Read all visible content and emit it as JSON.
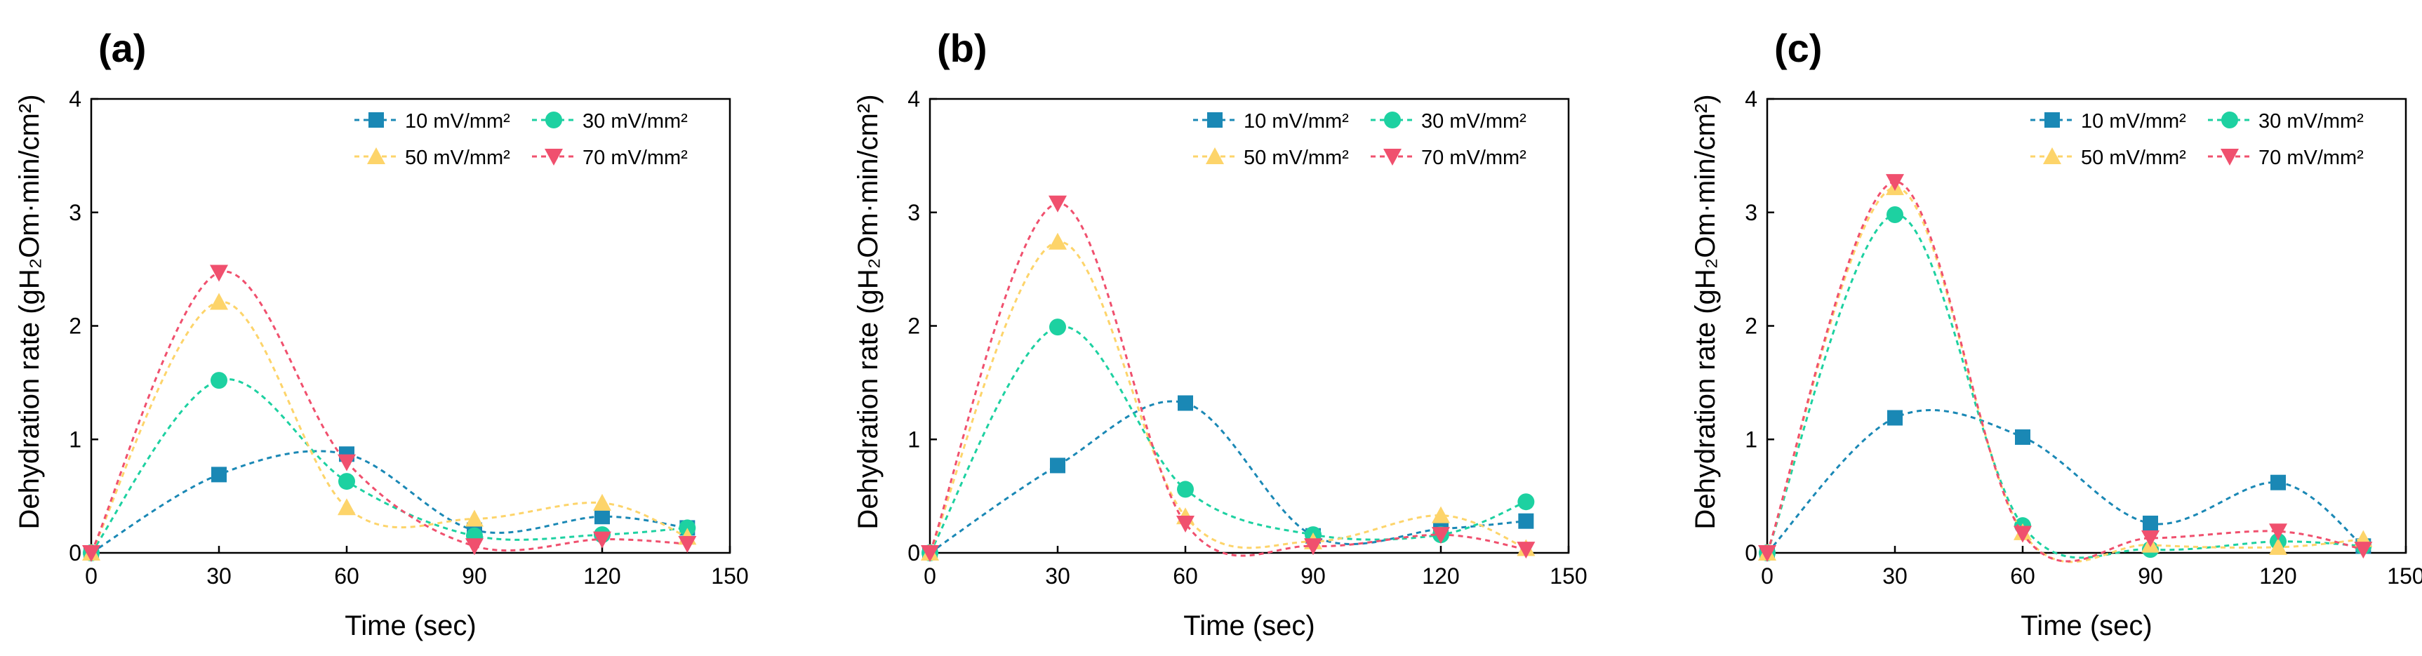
{
  "chart_data": [
    {
      "type": "line",
      "panel_label": "(a)",
      "xlabel": "Time (sec)",
      "ylabel": "Dehydration rate (gH₂Om·min/cm²)",
      "xlim": [
        0,
        150
      ],
      "ylim": [
        0,
        4
      ],
      "xticks": [
        "0",
        "30",
        "60",
        "90",
        "120",
        "150"
      ],
      "yticks": [
        "0",
        "1",
        "2",
        "3",
        "4"
      ],
      "x": [
        0,
        30,
        60,
        90,
        120,
        140
      ],
      "series": [
        {
          "name": "10 mV/mm²",
          "color": "#1a88b5",
          "marker": "square",
          "values": [
            0,
            0.69,
            0.87,
            0.2,
            0.32,
            0.22
          ]
        },
        {
          "name": "30 mV/mm²",
          "color": "#1dd1a1",
          "marker": "circle",
          "values": [
            0,
            1.52,
            0.63,
            0.15,
            0.16,
            0.22
          ]
        },
        {
          "name": "50 mV/mm²",
          "color": "#fdd46a",
          "marker": "triangle-up",
          "values": [
            0,
            2.21,
            0.4,
            0.3,
            0.44,
            0.14
          ]
        },
        {
          "name": "70 mV/mm²",
          "color": "#f0506e",
          "marker": "triangle-down",
          "values": [
            0,
            2.47,
            0.8,
            0.06,
            0.12,
            0.08
          ]
        }
      ]
    },
    {
      "type": "line",
      "panel_label": "(b)",
      "xlabel": "Time (sec)",
      "ylabel": "Dehydration rate (gH₂Om·min/cm²)",
      "xlim": [
        0,
        150
      ],
      "ylim": [
        0,
        4
      ],
      "xticks": [
        "0",
        "30",
        "60",
        "90",
        "120",
        "150"
      ],
      "yticks": [
        "0",
        "1",
        "2",
        "3",
        "4"
      ],
      "x": [
        0,
        30,
        60,
        90,
        120,
        140
      ],
      "series": [
        {
          "name": "10 mV/mm²",
          "color": "#1a88b5",
          "marker": "square",
          "values": [
            0,
            0.77,
            1.32,
            0.15,
            0.21,
            0.28
          ]
        },
        {
          "name": "30 mV/mm²",
          "color": "#1dd1a1",
          "marker": "circle",
          "values": [
            0,
            1.99,
            0.56,
            0.16,
            0.16,
            0.45
          ]
        },
        {
          "name": "50 mV/mm²",
          "color": "#fdd46a",
          "marker": "triangle-up",
          "values": [
            0,
            2.74,
            0.32,
            0.1,
            0.33,
            0.04
          ]
        },
        {
          "name": "70 mV/mm²",
          "color": "#f0506e",
          "marker": "triangle-down",
          "values": [
            0,
            3.08,
            0.26,
            0.06,
            0.16,
            0.03
          ]
        }
      ]
    },
    {
      "type": "line",
      "panel_label": "(c)",
      "xlabel": "Time (sec)",
      "ylabel": "Dehydration rate (gH₂Om·min/cm²)",
      "xlim": [
        0,
        150
      ],
      "ylim": [
        0,
        4
      ],
      "xticks": [
        "0",
        "30",
        "60",
        "90",
        "120",
        "150"
      ],
      "yticks": [
        "0",
        "1",
        "2",
        "3",
        "4"
      ],
      "x": [
        0,
        30,
        60,
        90,
        120,
        140
      ],
      "series": [
        {
          "name": "10 mV/mm²",
          "color": "#1a88b5",
          "marker": "square",
          "values": [
            0,
            1.19,
            1.02,
            0.26,
            0.62,
            0.06
          ]
        },
        {
          "name": "30 mV/mm²",
          "color": "#1dd1a1",
          "marker": "circle",
          "values": [
            0,
            2.98,
            0.24,
            0.03,
            0.1,
            0.06
          ]
        },
        {
          "name": "50 mV/mm²",
          "color": "#fdd46a",
          "marker": "triangle-up",
          "values": [
            0,
            3.22,
            0.18,
            0.07,
            0.05,
            0.12
          ]
        },
        {
          "name": "70 mV/mm²",
          "color": "#f0506e",
          "marker": "triangle-down",
          "values": [
            0,
            3.27,
            0.17,
            0.13,
            0.19,
            0.03
          ]
        }
      ]
    }
  ]
}
